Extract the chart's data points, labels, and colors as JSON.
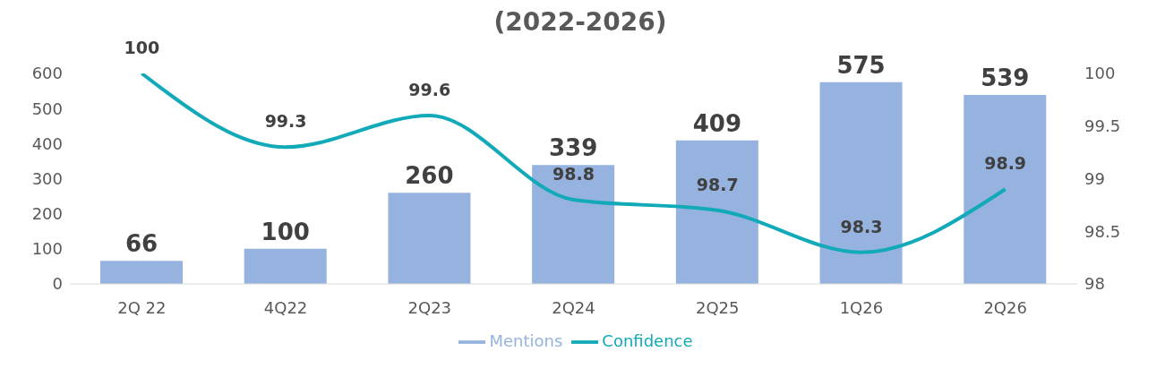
{
  "chart_data": {
    "type": "bar",
    "title": "(2022-2026)",
    "categories": [
      "2Q 22",
      "4Q22",
      "2Q23",
      "2Q24",
      "2Q25",
      "1Q26",
      "2Q26"
    ],
    "series": [
      {
        "name": "Mentions",
        "color": "#95b3de",
        "values": [
          66,
          100,
          260,
          339,
          409,
          575,
          539
        ]
      },
      {
        "name": "Confidence",
        "type": "line",
        "axis": "y2",
        "color": "#12a9b8",
        "values": [
          100,
          99.3,
          99.6,
          98.8,
          98.7,
          98.3,
          98.9
        ]
      }
    ],
    "ylim": [
      0,
      600
    ],
    "yticks": [
      0,
      100,
      200,
      300,
      400,
      500,
      600
    ],
    "y2lim": [
      98,
      100
    ],
    "y2ticks": [
      98,
      98.5,
      99,
      99.5,
      100
    ],
    "data_labels": true,
    "legend": "bottom",
    "grid": false,
    "marker": "none",
    "line_style": "solid"
  }
}
